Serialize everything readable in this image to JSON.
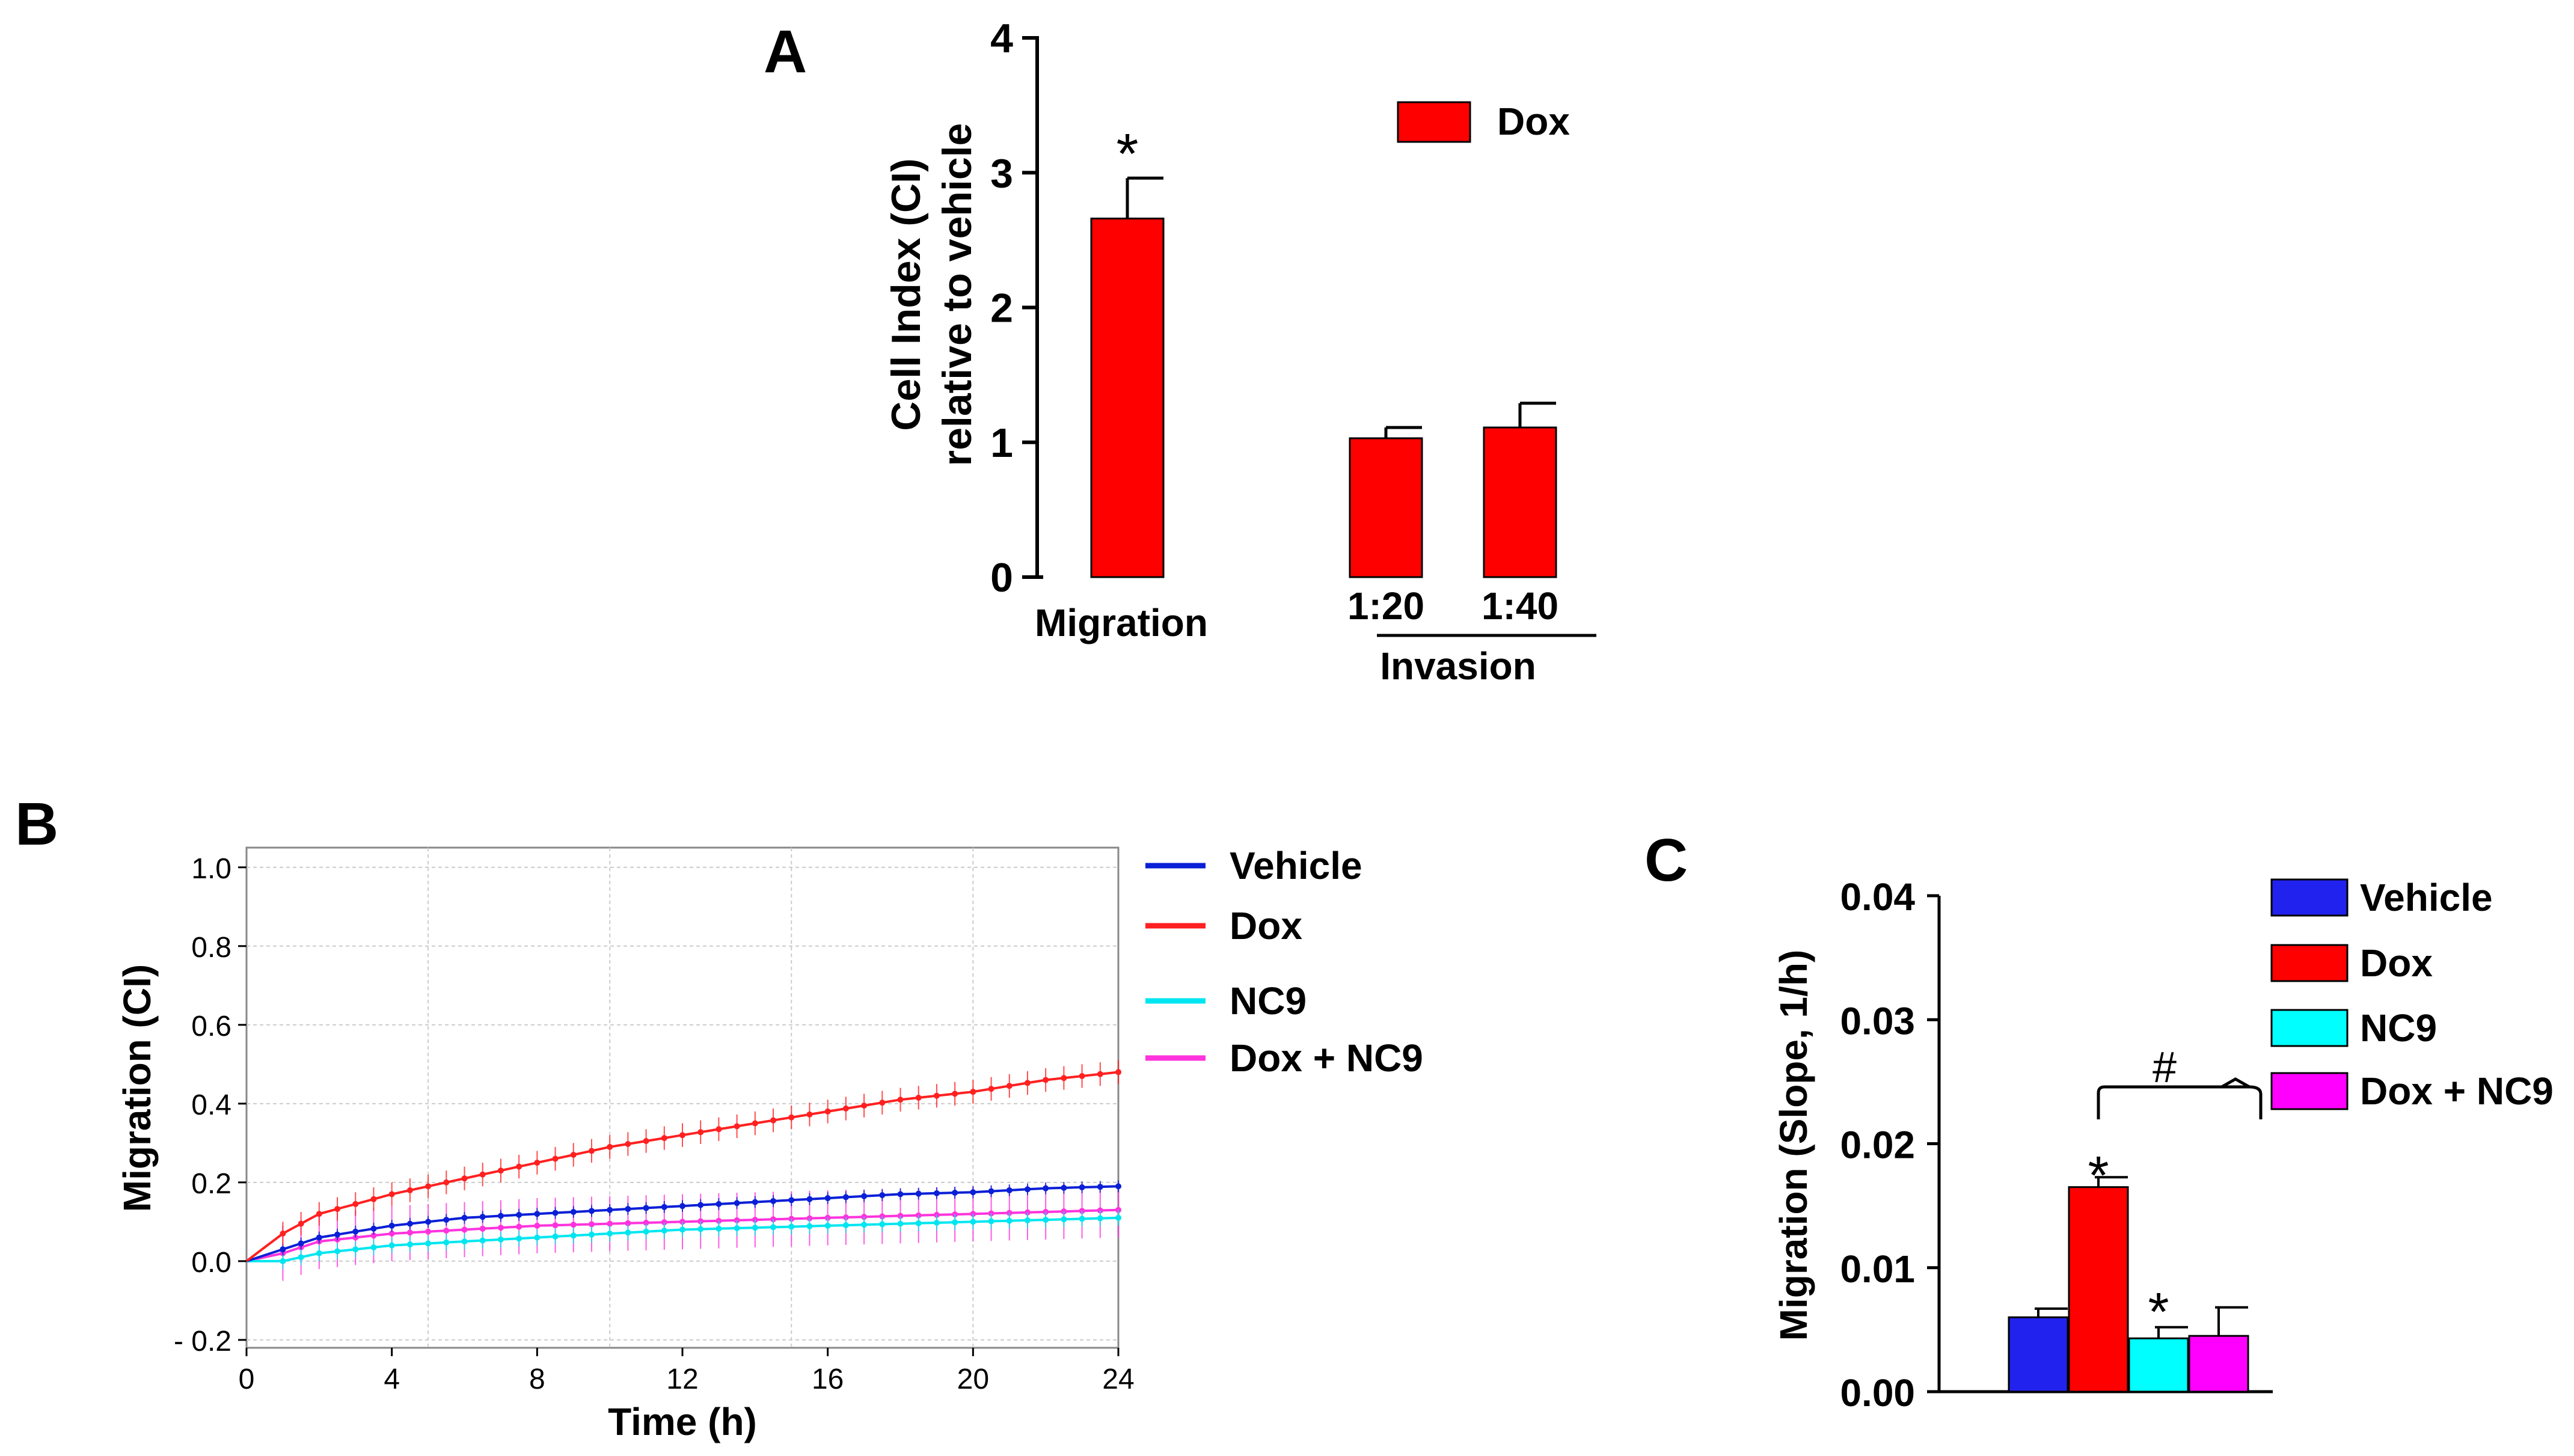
{
  "panel_labels": {
    "a": "A",
    "b": "B",
    "c": "C"
  },
  "chart_data": [
    {
      "panel": "A",
      "type": "bar",
      "ylabel_line1": "Cell Index (CI)",
      "ylabel_line2": "relative to vehicle",
      "ylim": [
        0,
        4
      ],
      "yticks": [
        0,
        1,
        2,
        3,
        4
      ],
      "categories": [
        "Migration",
        "1:20",
        "1:40"
      ],
      "group_label": "Invasion",
      "series": [
        {
          "name": "Dox",
          "color": "#ff0000",
          "values": [
            2.66,
            1.03,
            1.11
          ],
          "errors": [
            0.3,
            0.08,
            0.18
          ]
        }
      ],
      "annotations": [
        {
          "category": "Migration",
          "text": "*"
        }
      ],
      "legend": "top-right"
    },
    {
      "panel": "B",
      "type": "line",
      "xlabel": "Time (h)",
      "ylabel": "Migration (CI)",
      "xlim": [
        0,
        24
      ],
      "ylim": [
        -0.2,
        1.0
      ],
      "xticks": [
        0,
        4,
        8,
        12,
        16,
        20,
        24
      ],
      "ytick_labels": [
        "- 0.2",
        "0.0",
        "0.2",
        "0.4",
        "0.6",
        "0.8",
        "1.0"
      ],
      "grid": true,
      "series": [
        {
          "name": "Vehicle",
          "color": "#0a1fd6",
          "x": [
            0,
            1,
            2,
            4,
            6,
            8,
            10,
            12,
            14,
            16,
            18,
            20,
            22,
            24
          ],
          "y": [
            0,
            0.03,
            0.06,
            0.09,
            0.11,
            0.12,
            0.13,
            0.14,
            0.15,
            0.16,
            0.17,
            0.175,
            0.185,
            0.19
          ],
          "err": 0.015
        },
        {
          "name": "Dox",
          "color": "#ff2020",
          "x": [
            0,
            1,
            2,
            4,
            6,
            8,
            10,
            12,
            14,
            16,
            18,
            20,
            22,
            24
          ],
          "y": [
            0,
            0.07,
            0.12,
            0.17,
            0.21,
            0.25,
            0.29,
            0.32,
            0.35,
            0.38,
            0.41,
            0.43,
            0.46,
            0.48
          ],
          "err": 0.03
        },
        {
          "name": "NC9",
          "color": "#00e6f0",
          "x": [
            0,
            1,
            2,
            4,
            6,
            8,
            10,
            12,
            14,
            16,
            18,
            20,
            22,
            24
          ],
          "y": [
            0,
            0.0,
            0.02,
            0.04,
            0.05,
            0.06,
            0.07,
            0.08,
            0.085,
            0.09,
            0.095,
            0.1,
            0.105,
            0.11
          ],
          "err": 0.02
        },
        {
          "name": "Dox + NC9",
          "color": "#ff33dd",
          "x": [
            0,
            1,
            2,
            4,
            6,
            8,
            10,
            12,
            14,
            16,
            18,
            20,
            22,
            24
          ],
          "y": [
            0,
            0.02,
            0.05,
            0.07,
            0.08,
            0.09,
            0.095,
            0.1,
            0.105,
            0.11,
            0.115,
            0.12,
            0.125,
            0.13
          ],
          "err": 0.07
        }
      ],
      "legend": "right"
    },
    {
      "panel": "C",
      "type": "bar",
      "ylabel": "Migration (Slope, 1/h)",
      "ylim": [
        0,
        0.04
      ],
      "ytick_labels": [
        "0.00",
        "0.01",
        "0.02",
        "0.03",
        "0.04"
      ],
      "series": [
        {
          "name": "Vehicle",
          "color": "#2222ee",
          "value": 0.006,
          "error": 0.0007
        },
        {
          "name": "Dox",
          "color": "#ff0000",
          "value": 0.0165,
          "error": 0.0008
        },
        {
          "name": "NC9",
          "color": "#00ffff",
          "value": 0.0043,
          "error": 0.0009
        },
        {
          "name": "Dox + NC9",
          "color": "#ff00ff",
          "value": 0.0045,
          "error": 0.0023
        }
      ],
      "annotations": [
        {
          "bar": "Dox",
          "text": "*"
        },
        {
          "bar": "NC9",
          "text": "*"
        },
        {
          "between": [
            "Dox",
            "Dox + NC9"
          ],
          "text": "#"
        }
      ],
      "legend": "right"
    }
  ]
}
